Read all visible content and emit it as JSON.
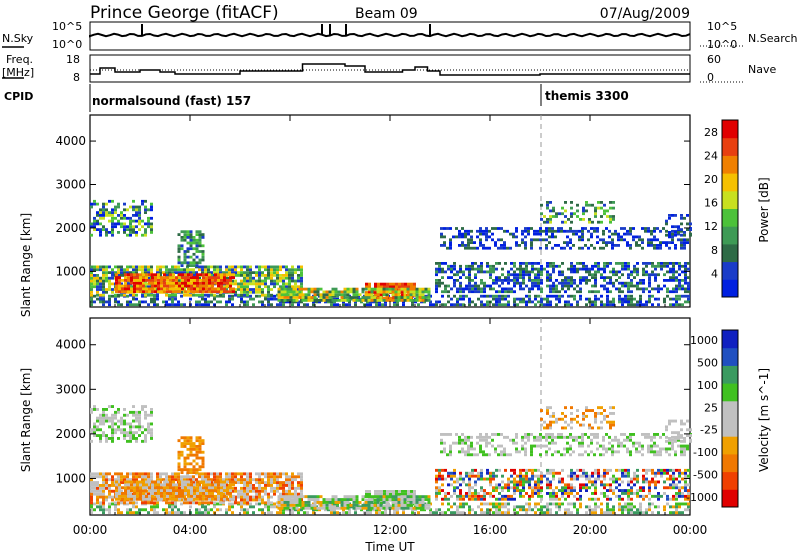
{
  "header": {
    "station": "Prince George (fitACF)",
    "beam": "Beam 09",
    "date": "07/Aug/2009"
  },
  "left_labels": {
    "nsky": "N.Sky",
    "freq_line1": "Freq.",
    "freq_line2": "[MHz]",
    "cpid": "CPID"
  },
  "right_labels": {
    "nsearch": "N.Search",
    "nave": "Nave"
  },
  "noise_axis": {
    "left_top": "10^5",
    "left_bottom": "10^0",
    "right_top": "10^5",
    "right_bottom": "10^0"
  },
  "freq_axis": {
    "left_top": "18",
    "left_bottom": "8",
    "right_top": "60",
    "right_bottom": "0"
  },
  "cpid_labels": {
    "first": "normalsound (fast) 157",
    "second": "themis 3300"
  },
  "colors": {
    "power": [
      "#0020e0",
      "#1a3cc8",
      "#2e6b46",
      "#3e9a55",
      "#4cc23a",
      "#c8e020",
      "#f5c000",
      "#f08000",
      "#e84010",
      "#e00000"
    ],
    "velocity": [
      "#e00000",
      "#f04000",
      "#f07800",
      "#f0a000",
      "#c0c0c0",
      "#c0c0c0",
      "#40c020",
      "#3a9a60",
      "#2050c0",
      "#1020c0"
    ]
  },
  "chart_data": [
    {
      "type": "heatmap",
      "name": "power",
      "xlabel": "Time UT",
      "ylabel": "Slant Range [km]",
      "x_ticks": [
        "00:00",
        "04:00",
        "08:00",
        "12:00",
        "16:00",
        "20:00",
        "00:00"
      ],
      "y_ticks": [
        "1000",
        "2000",
        "3000",
        "4000"
      ],
      "ylim": [
        180,
        4600
      ],
      "xlim_hours": [
        0,
        24
      ],
      "colorbar_label": "Power [dB]",
      "colorbar_ticks": [
        "4",
        "8",
        "12",
        "16",
        "20",
        "24",
        "28"
      ],
      "clim": [
        0,
        30
      ]
    },
    {
      "type": "heatmap",
      "name": "velocity",
      "xlabel": "Time UT",
      "ylabel": "Slant Range [km]",
      "x_ticks": [
        "00:00",
        "04:00",
        "08:00",
        "12:00",
        "16:00",
        "20:00",
        "00:00"
      ],
      "y_ticks": [
        "1000",
        "2000",
        "3000",
        "4000"
      ],
      "ylim": [
        180,
        4600
      ],
      "xlim_hours": [
        0,
        24
      ],
      "colorbar_label": "Velocity [m s^-1]",
      "colorbar_ticks": [
        "1000",
        "500",
        "100",
        "25",
        "-25",
        "-100",
        "-500",
        "-1000"
      ]
    }
  ]
}
